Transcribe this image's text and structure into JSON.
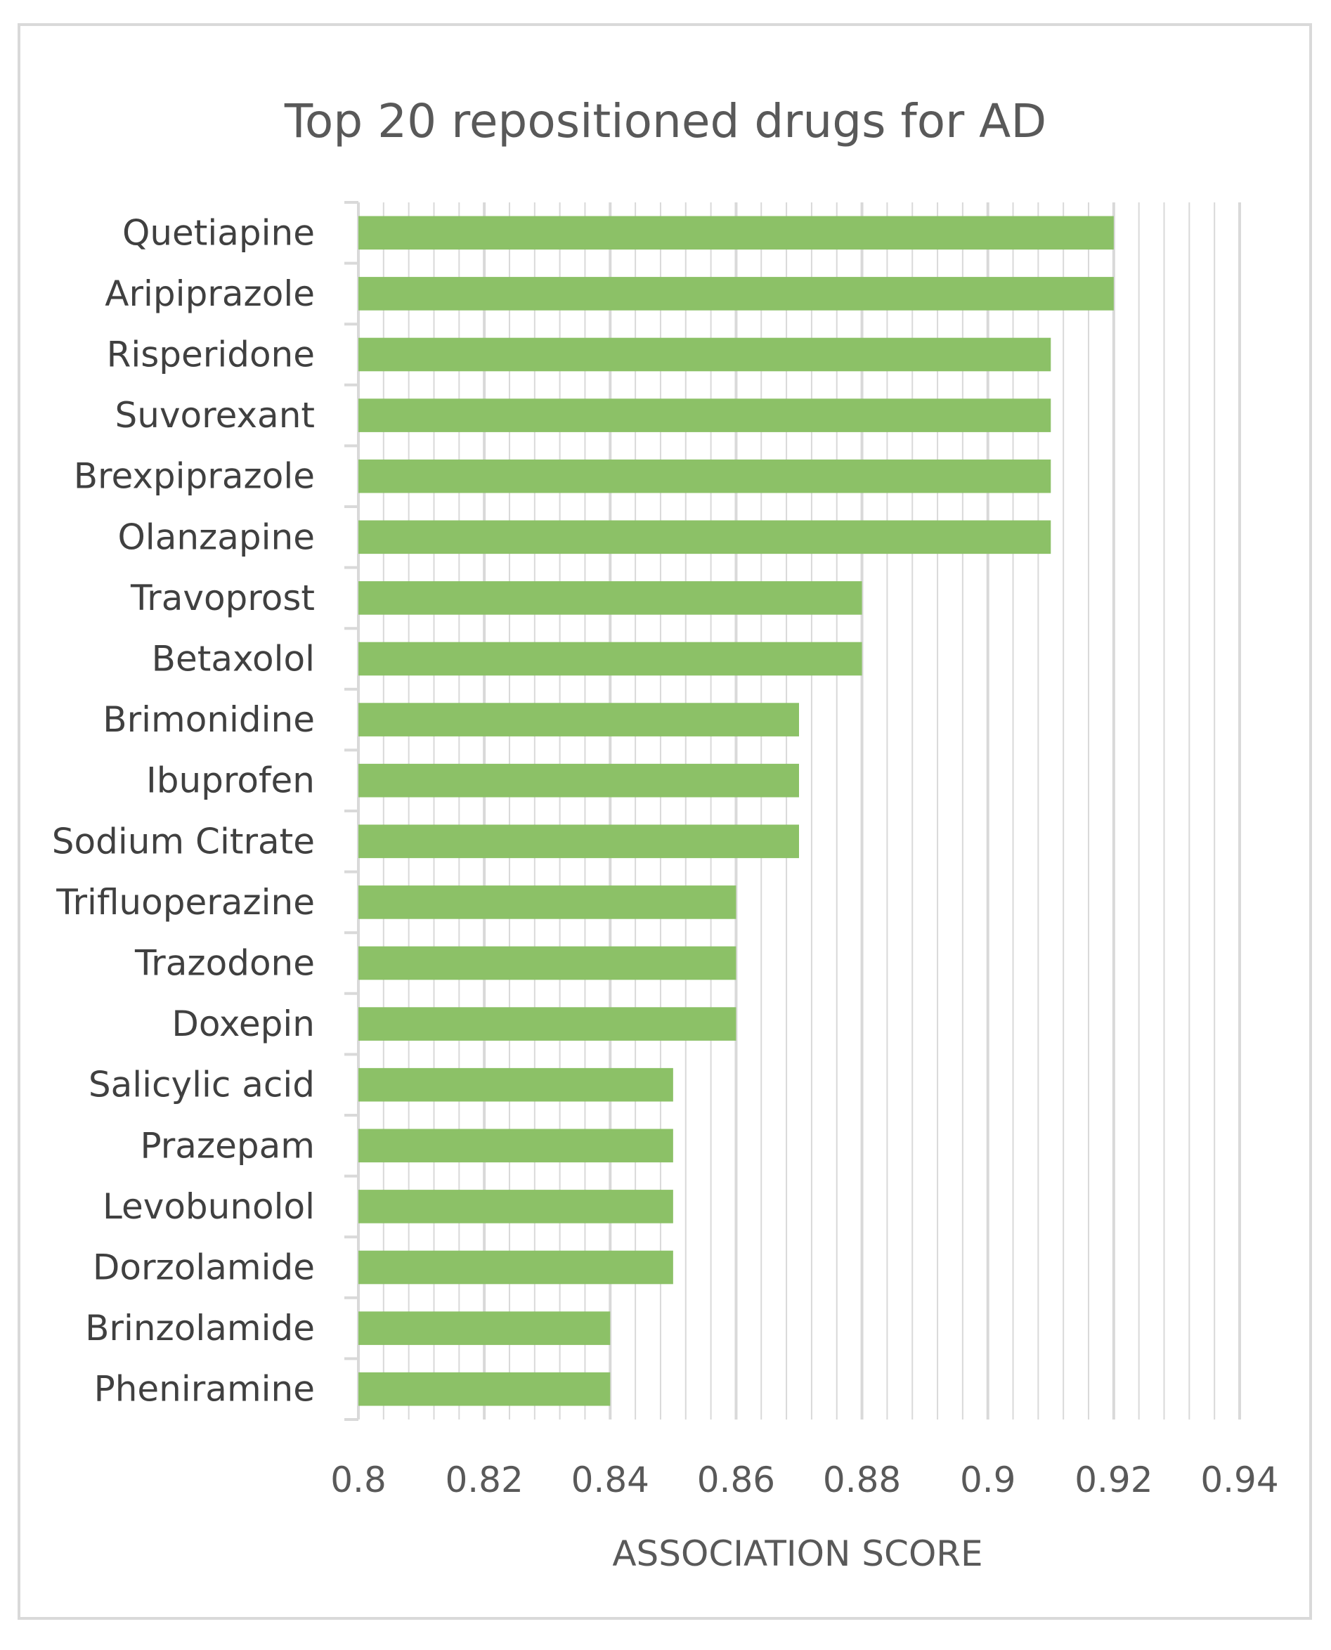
{
  "chart_data": {
    "type": "bar",
    "orientation": "horizontal",
    "title": "Top 20 repositioned drugs for AD",
    "xlabel": "ASSOCIATION SCORE",
    "ylabel": "",
    "categories": [
      "Quetiapine",
      "Aripiprazole",
      "Risperidone",
      "Suvorexant",
      "Brexpiprazole",
      "Olanzapine",
      "Travoprost",
      "Betaxolol",
      "Brimonidine",
      "Ibuprofen",
      "Sodium Citrate",
      "Trifluoperazine",
      "Trazodone",
      "Doxepin",
      "Salicylic acid",
      "Prazepam",
      "Levobunolol",
      "Dorzolamide",
      "Brinzolamide",
      "Pheniramine"
    ],
    "values": [
      0.92,
      0.92,
      0.91,
      0.91,
      0.91,
      0.91,
      0.88,
      0.88,
      0.87,
      0.87,
      0.87,
      0.86,
      0.86,
      0.86,
      0.85,
      0.85,
      0.85,
      0.85,
      0.84,
      0.84
    ],
    "xlim": [
      0.8,
      0.94
    ],
    "ticks": [
      "0.8",
      "0.82",
      "0.84",
      "0.86",
      "0.88",
      "0.9",
      "0.92",
      "0.94"
    ],
    "grid": true,
    "legend": "none",
    "bar_color": "#8cc167",
    "gridline_color": "#d9d9d9",
    "text_color": "#595959"
  }
}
